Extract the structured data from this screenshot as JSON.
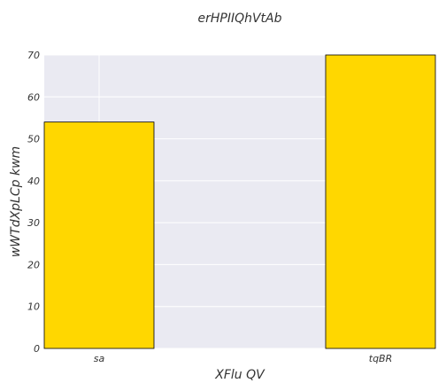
{
  "chart_data": {
    "type": "bar",
    "title": "erHPIIQhVtAb",
    "xlabel": "XFlu QV",
    "ylabel": "wWTdXpLCp kwm",
    "categories": [
      "sa",
      "tqBR"
    ],
    "values": [
      54,
      70
    ],
    "ylim": [
      0,
      70
    ],
    "yticks": [
      0,
      10,
      20,
      30,
      40,
      50,
      60,
      70
    ],
    "grid": true,
    "colors": {
      "bar_fill": "#FFD700",
      "bar_edge": "#000000",
      "plot_background": "#EAEAF2",
      "grid": "#FFFFFF"
    }
  }
}
